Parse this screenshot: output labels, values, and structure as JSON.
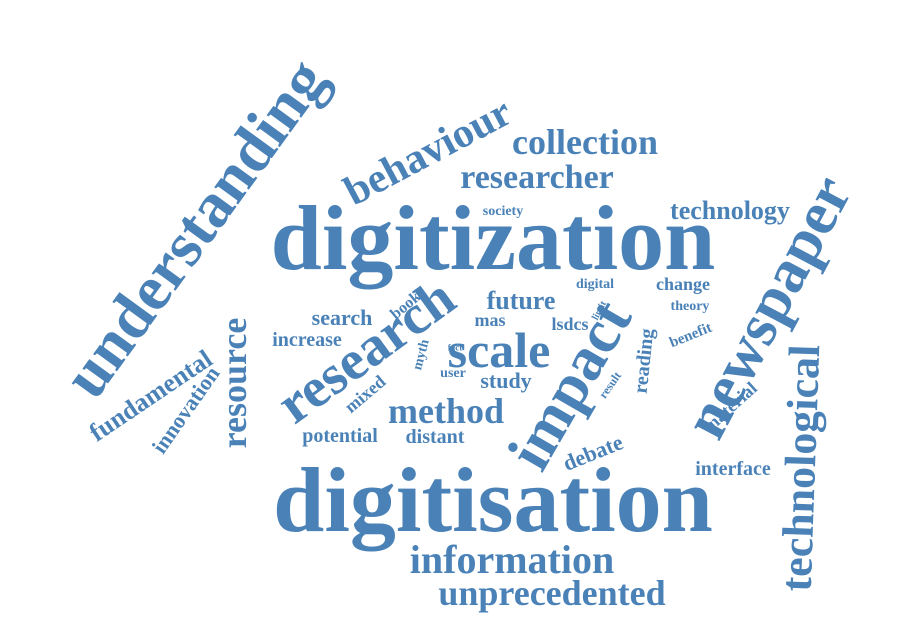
{
  "word_color": "#4a82b8",
  "words": {
    "digitization": "digitization",
    "digitisation": "digitisation",
    "understanding": "understanding",
    "newspaper": "newspaper",
    "technological": "technological",
    "behaviour": "behaviour",
    "collection": "collection",
    "researcher": "researcher",
    "technology": "technology",
    "society": "society",
    "research": "research",
    "impact": "impact",
    "scale": "scale",
    "resource": "resource",
    "fundamental": "fundamental",
    "innovation": "innovation",
    "search": "search",
    "increase": "increase",
    "book": "book",
    "future": "future",
    "mas": "mas",
    "lsdcs": "lsdcs",
    "digital": "digital",
    "change": "change",
    "limit": "limit",
    "theory": "theory",
    "benefit": "benefit",
    "fact": "fact",
    "myth": "myth",
    "user": "user",
    "study": "study",
    "mixed": "mixed",
    "result": "result",
    "reading": "reading",
    "material": "material",
    "method": "method",
    "potential": "potential",
    "distant": "distant",
    "debate": "debate",
    "interface": "interface",
    "information": "information",
    "unprecedented": "unprecedented"
  }
}
